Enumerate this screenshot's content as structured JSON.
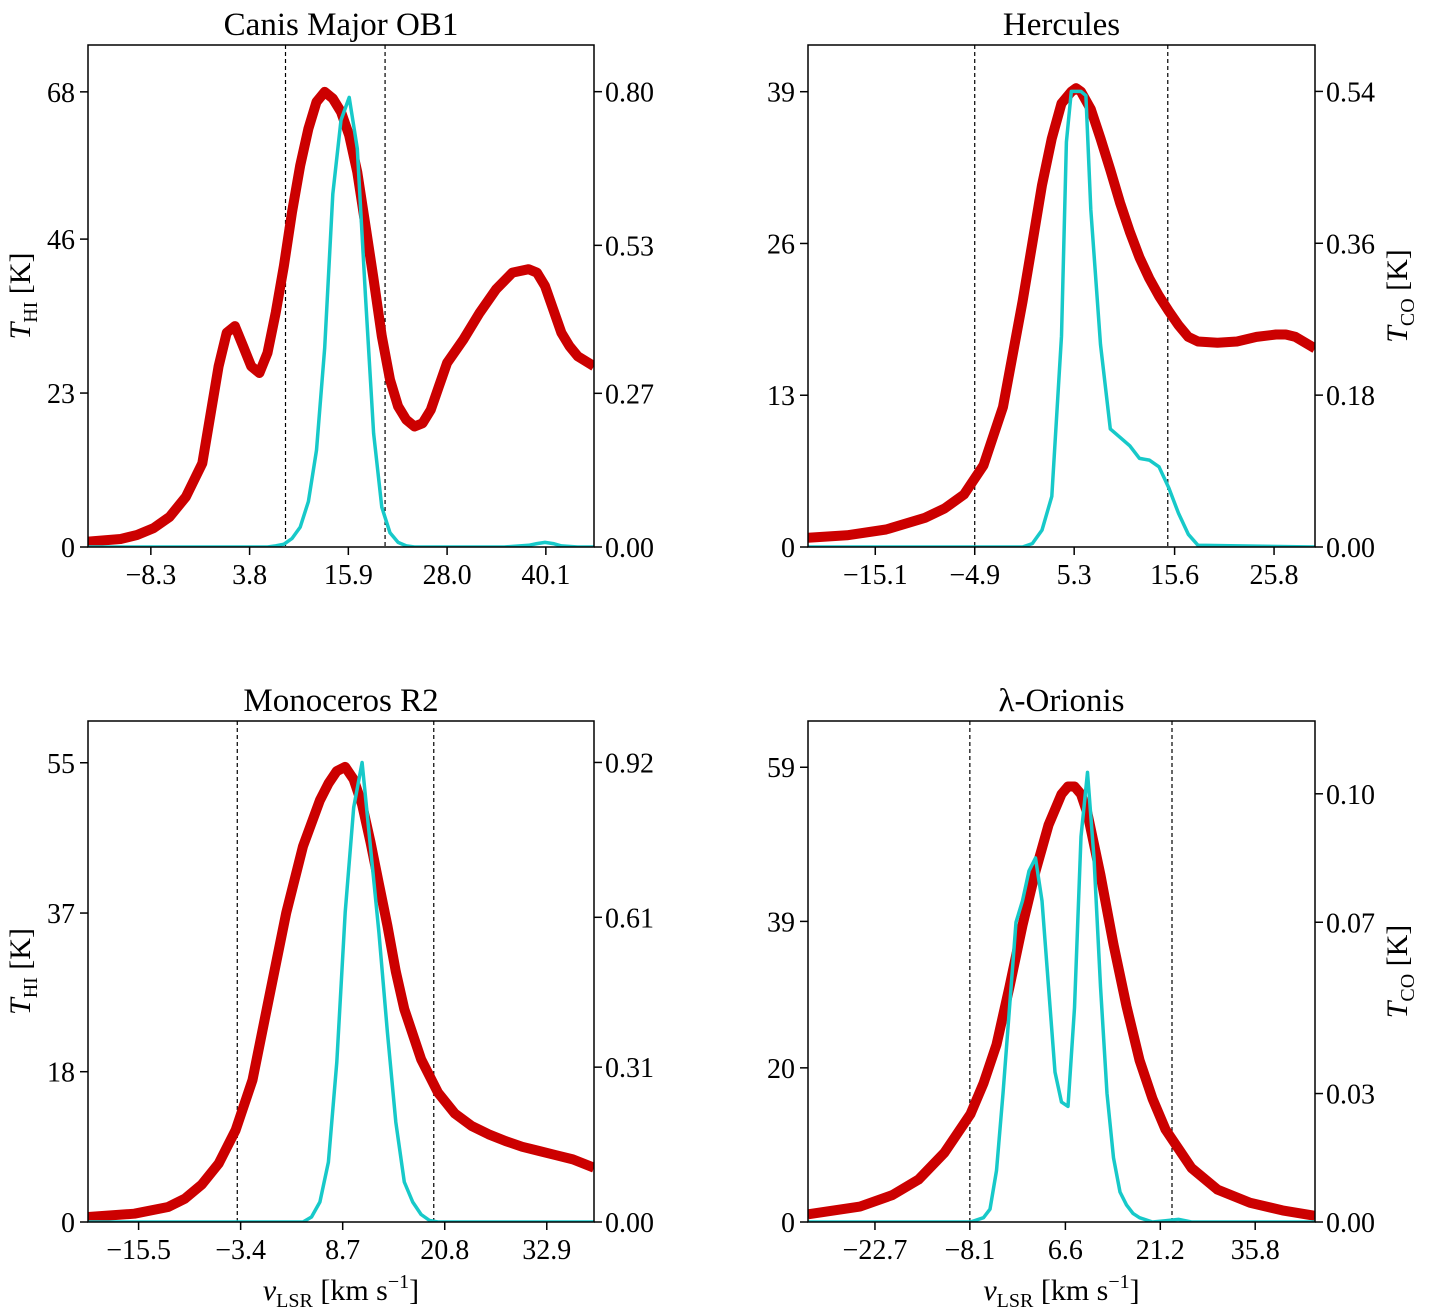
{
  "colors": {
    "hi": "#cc0000",
    "co": "#17c9c9",
    "frame": "#000000",
    "vline": "#000000"
  },
  "chart_data": [
    {
      "type": "line",
      "title": "Canis Major OB1",
      "xlim": [
        -16.0,
        46.0
      ],
      "ylim_left": [
        0,
        75
      ],
      "ylim_right": [
        0,
        0.882
      ],
      "xticks": [
        -8.3,
        3.8,
        15.9,
        28.0,
        40.1
      ],
      "xtick_labels": [
        "−8.3",
        "3.8",
        "15.9",
        "28.0",
        "40.1"
      ],
      "yticks_left": [
        0,
        23,
        46,
        68
      ],
      "ytick_labels_left": [
        "0",
        "23",
        "46",
        "68"
      ],
      "yticks_right": [
        0,
        0.27,
        0.53,
        0.8
      ],
      "ytick_labels_right": [
        "0.00",
        "0.27",
        "0.53",
        "0.80"
      ],
      "vlines": [
        8.2,
        20.4
      ],
      "ylabel_left": {
        "main": "T",
        "sub": "HI",
        "unit": " [K]"
      },
      "ylabel_right": null,
      "xlabel": null,
      "series": [
        {
          "name": "T_HI",
          "axis": "left",
          "x": [
            -16,
            -12,
            -10,
            -8,
            -6,
            -4,
            -2,
            0,
            1,
            2,
            3,
            4,
            5,
            6,
            7,
            8,
            9,
            10,
            11,
            12,
            13,
            14,
            15,
            16,
            17,
            18,
            19,
            20,
            21,
            22,
            23,
            24,
            25,
            26,
            27,
            28,
            30,
            32,
            34,
            36,
            38,
            39,
            40,
            41,
            42,
            43,
            44,
            46
          ],
          "values": [
            0.8,
            1.2,
            1.8,
            2.8,
            4.5,
            7.5,
            12.5,
            27,
            32,
            33,
            30,
            27,
            26,
            29,
            35,
            42,
            50,
            57,
            62.5,
            66.5,
            68,
            67,
            65,
            61.5,
            56,
            48,
            40,
            31.5,
            25,
            21,
            19,
            18,
            18.5,
            20.5,
            24,
            27.5,
            31,
            35,
            38.5,
            41,
            41.5,
            41,
            39,
            35.5,
            32,
            30,
            28.5,
            27
          ]
        },
        {
          "name": "T_CO",
          "axis": "right",
          "x": [
            -16,
            6,
            7,
            8,
            9,
            10,
            11,
            12,
            13,
            14,
            15,
            16,
            17,
            18,
            19,
            20,
            21,
            22,
            23,
            24,
            25,
            30,
            35,
            38,
            39,
            40,
            41,
            42,
            44,
            46
          ],
          "values": [
            0,
            0,
            0.002,
            0.005,
            0.015,
            0.035,
            0.08,
            0.17,
            0.35,
            0.62,
            0.75,
            0.79,
            0.7,
            0.44,
            0.2,
            0.07,
            0.025,
            0.008,
            0.002,
            0,
            0,
            0,
            0,
            0.003,
            0.006,
            0.008,
            0.006,
            0.002,
            0,
            0
          ]
        }
      ]
    },
    {
      "type": "line",
      "title": "Hercules",
      "xlim": [
        -22.0,
        30.0
      ],
      "ylim_left": [
        0,
        43
      ],
      "ylim_right": [
        0,
        0.595
      ],
      "xticks": [
        -15.1,
        -4.9,
        5.3,
        15.6,
        25.8
      ],
      "xtick_labels": [
        "−15.1",
        "−4.9",
        "5.3",
        "15.6",
        "25.8"
      ],
      "yticks_left": [
        0,
        13,
        26,
        39
      ],
      "ytick_labels_left": [
        "0",
        "13",
        "26",
        "39"
      ],
      "yticks_right": [
        0,
        0.18,
        0.36,
        0.54
      ],
      "ytick_labels_right": [
        "0.00",
        "0.18",
        "0.36",
        "0.54"
      ],
      "vlines": [
        -4.9,
        14.9
      ],
      "ylabel_left": null,
      "ylabel_right": {
        "main": "T",
        "sub": "CO",
        "unit": " [K]"
      },
      "xlabel": null,
      "series": [
        {
          "name": "T_HI",
          "axis": "left",
          "x": [
            -22,
            -18,
            -14,
            -10,
            -8,
            -6,
            -4,
            -2,
            0,
            1,
            2,
            3,
            4,
            5,
            5.5,
            6,
            7,
            8,
            9,
            10,
            11,
            12,
            13,
            14,
            15,
            16,
            17,
            18,
            20,
            22,
            24,
            26,
            27,
            28,
            30
          ],
          "values": [
            0.8,
            1,
            1.5,
            2.5,
            3.3,
            4.5,
            7,
            12,
            21,
            26,
            31,
            35,
            38,
            39,
            39.3,
            39,
            37.5,
            35,
            32.3,
            29.5,
            27,
            24.8,
            23,
            21.5,
            20.2,
            19,
            18,
            17.6,
            17.5,
            17.6,
            18,
            18.2,
            18.2,
            18,
            17
          ]
        },
        {
          "name": "T_CO",
          "axis": "right",
          "x": [
            -22,
            0,
            1,
            2,
            3,
            4,
            4.5,
            5,
            6,
            6.5,
            7,
            8,
            9,
            10,
            11,
            12,
            13,
            14,
            15,
            16,
            17,
            18,
            30
          ],
          "values": [
            0,
            0,
            0.004,
            0.02,
            0.06,
            0.25,
            0.48,
            0.54,
            0.54,
            0.535,
            0.4,
            0.24,
            0.14,
            0.13,
            0.12,
            0.105,
            0.103,
            0.095,
            0.07,
            0.04,
            0.015,
            0.002,
            0
          ]
        }
      ]
    },
    {
      "type": "line",
      "title": "Monoceros R2",
      "xlim": [
        -21.5,
        38.5
      ],
      "ylim_left": [
        0,
        60
      ],
      "ylim_right": [
        0,
        1.003
      ],
      "xticks": [
        -15.5,
        -3.4,
        8.7,
        20.8,
        32.9
      ],
      "xtick_labels": [
        "−15.5",
        "−3.4",
        "8.7",
        "20.8",
        "32.9"
      ],
      "yticks_left": [
        0,
        18,
        37,
        55
      ],
      "ytick_labels_left": [
        "0",
        "18",
        "37",
        "55"
      ],
      "yticks_right": [
        0,
        0.31,
        0.61,
        0.92
      ],
      "ytick_labels_right": [
        "0.00",
        "0.31",
        "0.61",
        "0.92"
      ],
      "vlines": [
        -3.8,
        19.5
      ],
      "ylabel_left": {
        "main": "T",
        "sub": "HI",
        "unit": " [K]"
      },
      "ylabel_right": null,
      "xlabel": {
        "main": "v",
        "sub": "LSR",
        "unit": " [km s",
        "sup": "−1",
        "end": "]"
      },
      "series": [
        {
          "name": "T_HI",
          "axis": "left",
          "x": [
            -21.5,
            -16,
            -12,
            -10,
            -8,
            -6,
            -4,
            -2,
            0,
            2,
            4,
            6,
            7,
            8,
            9,
            10,
            11,
            12,
            13,
            14,
            15,
            16,
            18,
            20,
            22,
            24,
            26,
            28,
            30,
            32,
            34,
            36,
            38.5
          ],
          "values": [
            0.6,
            1,
            1.8,
            2.8,
            4.5,
            7,
            11,
            17,
            27,
            37,
            45,
            50.5,
            52.5,
            54,
            54.5,
            53,
            50,
            45.5,
            40.5,
            35.5,
            30,
            25.5,
            19.5,
            15.5,
            13,
            11.5,
            10.5,
            9.7,
            9,
            8.5,
            8,
            7.5,
            6.5
          ]
        },
        {
          "name": "T_CO",
          "axis": "right",
          "x": [
            -21.5,
            4,
            5,
            6,
            7,
            8,
            9,
            10,
            11,
            12,
            13,
            14,
            15,
            16,
            17,
            18,
            19,
            20,
            38.5
          ],
          "values": [
            0,
            0,
            0.01,
            0.04,
            0.12,
            0.32,
            0.62,
            0.83,
            0.92,
            0.75,
            0.58,
            0.38,
            0.2,
            0.08,
            0.04,
            0.015,
            0.003,
            0,
            0
          ]
        }
      ]
    },
    {
      "type": "line",
      "title": "λ-Orionis",
      "xlim": [
        -33.0,
        45.0
      ],
      "ylim_left": [
        0,
        65
      ],
      "ylim_right": [
        0,
        0.117
      ],
      "xticks": [
        -22.7,
        -8.1,
        6.6,
        21.2,
        35.8
      ],
      "xtick_labels": [
        "−22.7",
        "−8.1",
        "6.6",
        "21.2",
        "35.8"
      ],
      "yticks_left": [
        0,
        20,
        39,
        59
      ],
      "ytick_labels_left": [
        "0",
        "20",
        "39",
        "59"
      ],
      "yticks_right": [
        0,
        0.03,
        0.07,
        0.1
      ],
      "ytick_labels_right": [
        "0.00",
        "0.03",
        "0.07",
        "0.10"
      ],
      "vlines": [
        -8.1,
        23.0
      ],
      "ylabel_left": null,
      "ylabel_right": {
        "main": "T",
        "sub": "CO",
        "unit": " [K]"
      },
      "xlabel": {
        "main": "v",
        "sub": "LSR",
        "unit": " [km s",
        "sup": "−1",
        "end": "]"
      },
      "series": [
        {
          "name": "T_HI",
          "axis": "left",
          "x": [
            -33,
            -25,
            -20,
            -16,
            -12,
            -8,
            -6,
            -4,
            -2,
            0,
            2,
            4,
            6,
            7,
            8,
            9,
            10,
            12,
            14,
            16,
            18,
            20,
            22,
            26,
            30,
            35,
            40,
            45
          ],
          "values": [
            1,
            2,
            3.5,
            5.5,
            9,
            14,
            18,
            23,
            30.5,
            38.5,
            45.5,
            51.5,
            55.5,
            56.5,
            56.5,
            55.5,
            53,
            45,
            36,
            28,
            21,
            16,
            12,
            7,
            4.2,
            2.5,
            1.5,
            0.8
          ]
        },
        {
          "name": "T_CO",
          "axis": "right",
          "x": [
            -33,
            -8,
            -6,
            -5,
            -4,
            -3,
            -2,
            -1,
            0,
            1,
            2,
            3,
            4,
            5,
            6,
            7,
            8,
            9,
            10,
            11,
            12,
            13,
            14,
            15,
            16,
            17,
            18,
            20,
            22,
            24,
            26,
            45
          ],
          "values": [
            0,
            0,
            0.001,
            0.003,
            0.012,
            0.03,
            0.05,
            0.07,
            0.075,
            0.082,
            0.085,
            0.075,
            0.055,
            0.035,
            0.028,
            0.027,
            0.05,
            0.09,
            0.105,
            0.085,
            0.055,
            0.03,
            0.015,
            0.007,
            0.004,
            0.002,
            0.001,
            0,
            0.0003,
            0.0006,
            0,
            0
          ]
        }
      ]
    }
  ]
}
